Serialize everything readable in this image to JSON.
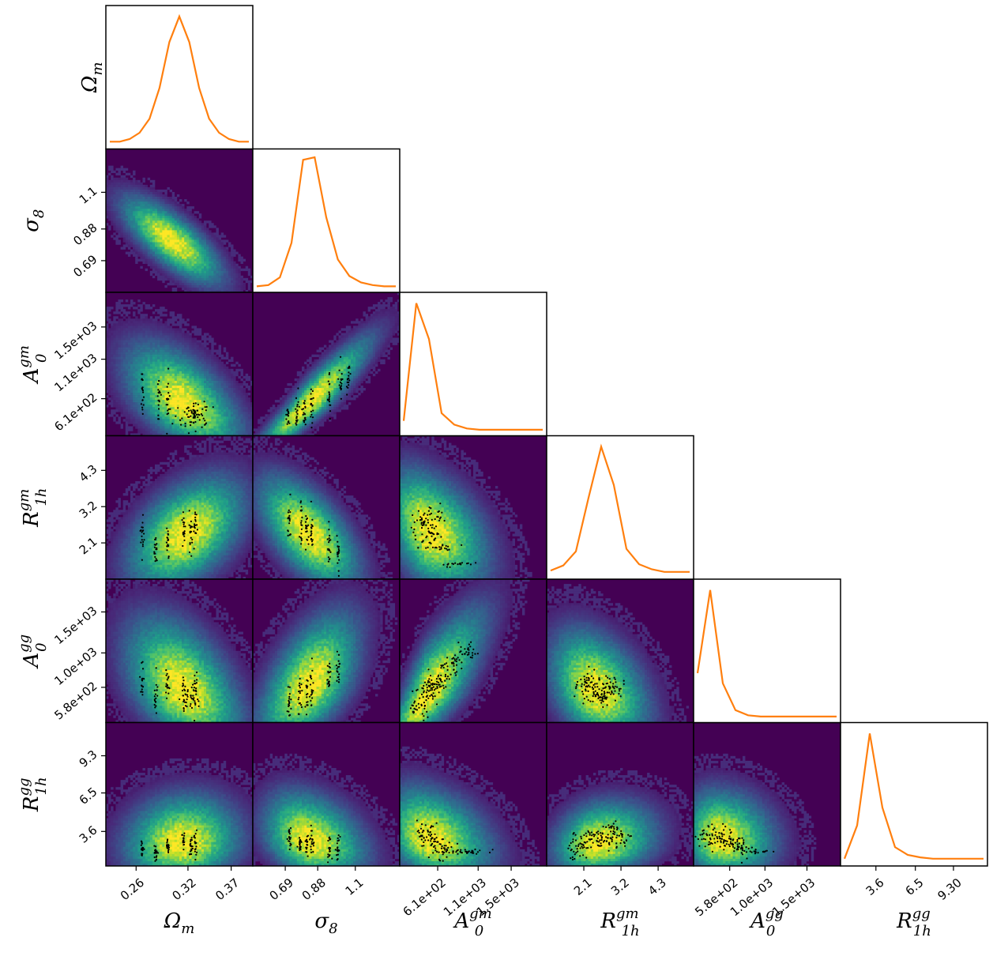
{
  "chart_data": {
    "type": "corner",
    "parameters": [
      {
        "key": "Om",
        "label_main": "Ω",
        "label_sub": "m",
        "label_sup": "",
        "ticks": [
          0.26,
          0.32,
          0.37
        ],
        "tick_labels": [
          "0.26",
          "0.32",
          "0.37"
        ],
        "range": [
          0.225,
          0.395
        ]
      },
      {
        "key": "s8",
        "label_main": "σ",
        "label_sub": "8",
        "label_sup": "",
        "ticks": [
          0.69,
          0.88,
          1.1
        ],
        "tick_labels": [
          "0.69",
          "0.88",
          "1.1"
        ],
        "range": [
          0.5,
          1.36
        ]
      },
      {
        "key": "Agm",
        "label_main": "A",
        "label_sub": "0",
        "label_sup": "gm",
        "ticks": [
          610,
          1100,
          1500
        ],
        "tick_labels": [
          "6.1e+02",
          "1.1e+03",
          "1.5e+03"
        ],
        "range": [
          150,
          1930
        ]
      },
      {
        "key": "Rgm",
        "label_main": "R",
        "label_sub": "1h",
        "label_sup": "gm",
        "ticks": [
          2.1,
          3.2,
          4.3
        ],
        "tick_labels": [
          "2.1",
          "3.2",
          "4.3"
        ],
        "range": [
          1.0,
          5.35
        ]
      },
      {
        "key": "Agg",
        "label_main": "A",
        "label_sub": "0",
        "label_sup": "gg",
        "ticks": [
          580,
          1000,
          1500
        ],
        "tick_labels": [
          "5.8e+02",
          "1.0e+03",
          "1.5e+03"
        ],
        "range": [
          150,
          1900
        ]
      },
      {
        "key": "Rgg",
        "label_main": "R",
        "label_sub": "1h",
        "label_sup": "gg",
        "ticks": [
          3.6,
          6.5,
          9.3
        ],
        "tick_labels": [
          "3.6",
          "6.5",
          "9.30"
        ],
        "range": [
          1.0,
          11.8
        ]
      }
    ],
    "row_tick_labels": {
      "s8": [
        "0.69",
        "0.88",
        "1.1"
      ],
      "Agm": [
        "6.1e+02",
        "1.1e+03",
        "1.5e+03"
      ],
      "Rgm": [
        "2.1",
        "3.2",
        "4.3"
      ],
      "Agg": [
        "5.8e+02",
        "1.0e+03",
        "1.5e+03"
      ],
      "Rgg": [
        "3.6",
        "6.5",
        "9.3"
      ]
    },
    "marginals": [
      {
        "param": "Om",
        "y": [
          0.02,
          0.02,
          0.04,
          0.09,
          0.2,
          0.44,
          0.8,
          1.0,
          0.8,
          0.44,
          0.2,
          0.09,
          0.04,
          0.02,
          0.02
        ]
      },
      {
        "param": "s8",
        "y": [
          0.01,
          0.02,
          0.08,
          0.35,
          1.0,
          1.02,
          0.55,
          0.22,
          0.09,
          0.04,
          0.02,
          0.01,
          0.01
        ]
      },
      {
        "param": "Agm",
        "y": [
          0.08,
          1.0,
          0.72,
          0.14,
          0.05,
          0.02,
          0.01,
          0.01,
          0.01,
          0.01,
          0.01,
          0.01
        ]
      },
      {
        "param": "Rgm",
        "y": [
          0.03,
          0.07,
          0.18,
          0.6,
          1.0,
          0.7,
          0.2,
          0.08,
          0.04,
          0.02,
          0.02,
          0.02
        ]
      },
      {
        "param": "Agg",
        "y": [
          0.35,
          1.0,
          0.27,
          0.06,
          0.02,
          0.01,
          0.01,
          0.01,
          0.01,
          0.01,
          0.01,
          0.01
        ]
      },
      {
        "param": "Rgg",
        "y": [
          0.02,
          0.28,
          1.0,
          0.42,
          0.11,
          0.05,
          0.03,
          0.02,
          0.02,
          0.02,
          0.02,
          0.02
        ]
      }
    ],
    "colors": {
      "marginal_line": "#ff7f0e",
      "density_background": "#440154",
      "sample_points": "#000000"
    },
    "colormap": "viridis"
  }
}
